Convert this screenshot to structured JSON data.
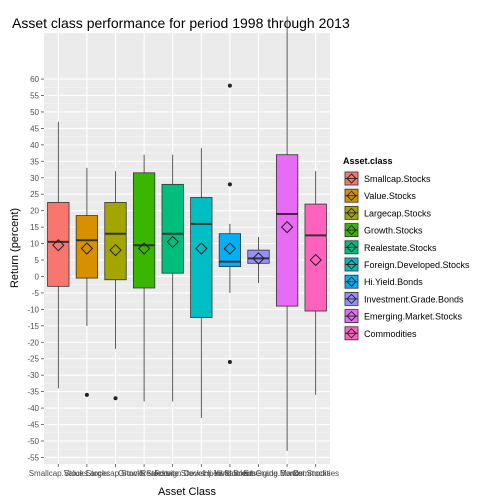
{
  "chart_data": {
    "type": "boxplot",
    "title": "Asset class performance for period 1998 through 2013",
    "xlabel": "Asset Class",
    "ylabel": "Return (percent)",
    "ylim": [
      -57,
      74
    ],
    "yticks": [
      -55,
      -50,
      -45,
      -40,
      -35,
      -30,
      -25,
      -20,
      -15,
      -10,
      -5,
      0,
      5,
      10,
      15,
      20,
      25,
      30,
      35,
      40,
      45,
      50,
      55,
      60
    ],
    "grid": true,
    "legend": {
      "title": "Asset.class",
      "placement": "right"
    },
    "series": [
      {
        "name": "Smallcap.Stocks",
        "color": "#F8766D",
        "whisker_low": -34,
        "q1": -3,
        "median": 10.5,
        "q3": 22.5,
        "whisker_high": 47,
        "mean": 9.5,
        "outliers": []
      },
      {
        "name": "Value.Stocks",
        "color": "#D89000",
        "whisker_low": -15,
        "q1": -0.5,
        "median": 11,
        "q3": 18.5,
        "whisker_high": 33,
        "mean": 8.5,
        "outliers": [
          -36
        ]
      },
      {
        "name": "Largecap.Stocks",
        "color": "#A3A500",
        "whisker_low": -22,
        "q1": -1,
        "median": 13,
        "q3": 22.5,
        "whisker_high": 32,
        "mean": 8,
        "outliers": [
          -37
        ]
      },
      {
        "name": "Growth.Stocks",
        "color": "#39B600",
        "whisker_low": -38,
        "q1": -3.5,
        "median": 9.5,
        "q3": 31.5,
        "whisker_high": 37,
        "mean": 8.5,
        "outliers": []
      },
      {
        "name": "Realestate.Stocks",
        "color": "#00BF7D",
        "whisker_low": -38,
        "q1": 1,
        "median": 13,
        "q3": 28,
        "whisker_high": 37,
        "mean": 10.5,
        "outliers": []
      },
      {
        "name": "Foreign.Developed.Stocks",
        "color": "#00BFC4",
        "whisker_low": -43,
        "q1": -12.5,
        "median": 16,
        "q3": 24,
        "whisker_high": 39,
        "mean": 8.5,
        "outliers": []
      },
      {
        "name": "Hi.Yield.Bonds",
        "color": "#00B0F6",
        "whisker_low": -5,
        "q1": 3,
        "median": 4.5,
        "q3": 13,
        "whisker_high": 16,
        "mean": 8.5,
        "outliers": [
          58,
          28,
          -26
        ]
      },
      {
        "name": "Investment.Grade.Bonds",
        "color": "#9590FF",
        "whisker_low": -2,
        "q1": 4,
        "median": 5.5,
        "q3": 8,
        "whisker_high": 12,
        "mean": 5.5,
        "outliers": []
      },
      {
        "name": "Emerging.Market.Stocks",
        "color": "#E76BF3",
        "whisker_low": -53,
        "q1": -9,
        "median": 19,
        "q3": 37,
        "whisker_high": 79,
        "mean": 15,
        "outliers": []
      },
      {
        "name": "Commodities",
        "color": "#FF62BC",
        "whisker_low": -36,
        "q1": -10.5,
        "median": 12.5,
        "q3": 22,
        "whisker_high": 32,
        "mean": 5,
        "outliers": []
      }
    ]
  }
}
